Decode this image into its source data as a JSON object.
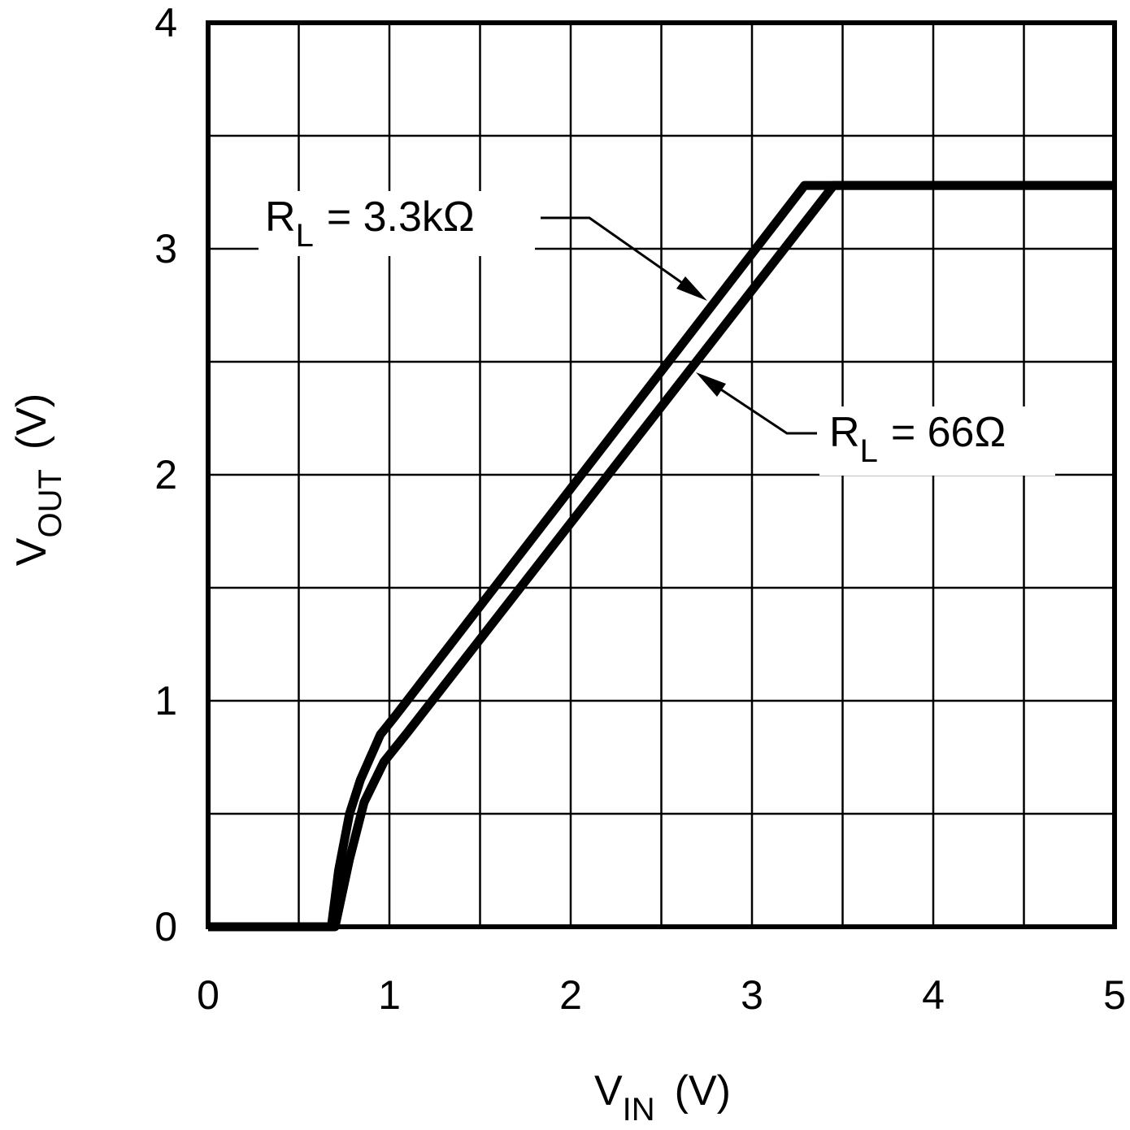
{
  "chart_data": {
    "type": "line",
    "xlabel": {
      "main": "V",
      "sub": "IN",
      "unit": "(V)"
    },
    "ylabel": {
      "main": "V",
      "sub": "OUT",
      "unit": "(V)"
    },
    "xlim": [
      0,
      5
    ],
    "ylim": [
      0,
      4
    ],
    "xticks": [
      0,
      1,
      2,
      3,
      4,
      5
    ],
    "yticks": [
      0,
      1,
      2,
      3,
      4
    ],
    "grid": true,
    "minor_grid": true,
    "series": [
      {
        "name": "R",
        "name_sub": "L",
        "name_value": "= 3.3kΩ",
        "color": "#000000",
        "x": [
          0,
          0.68,
          0.72,
          0.78,
          0.84,
          0.95,
          1.03,
          3.29,
          5
        ],
        "values": [
          0,
          0,
          0.25,
          0.5,
          0.65,
          0.85,
          0.93,
          3.28,
          3.28
        ]
      },
      {
        "name": "R",
        "name_sub": "L",
        "name_value": "= 66Ω",
        "color": "#000000",
        "x": [
          0,
          0.7,
          0.78,
          0.86,
          0.97,
          1.1,
          3.45,
          5
        ],
        "values": [
          0,
          0,
          0.3,
          0.55,
          0.73,
          0.86,
          3.28,
          3.28
        ]
      }
    ]
  }
}
